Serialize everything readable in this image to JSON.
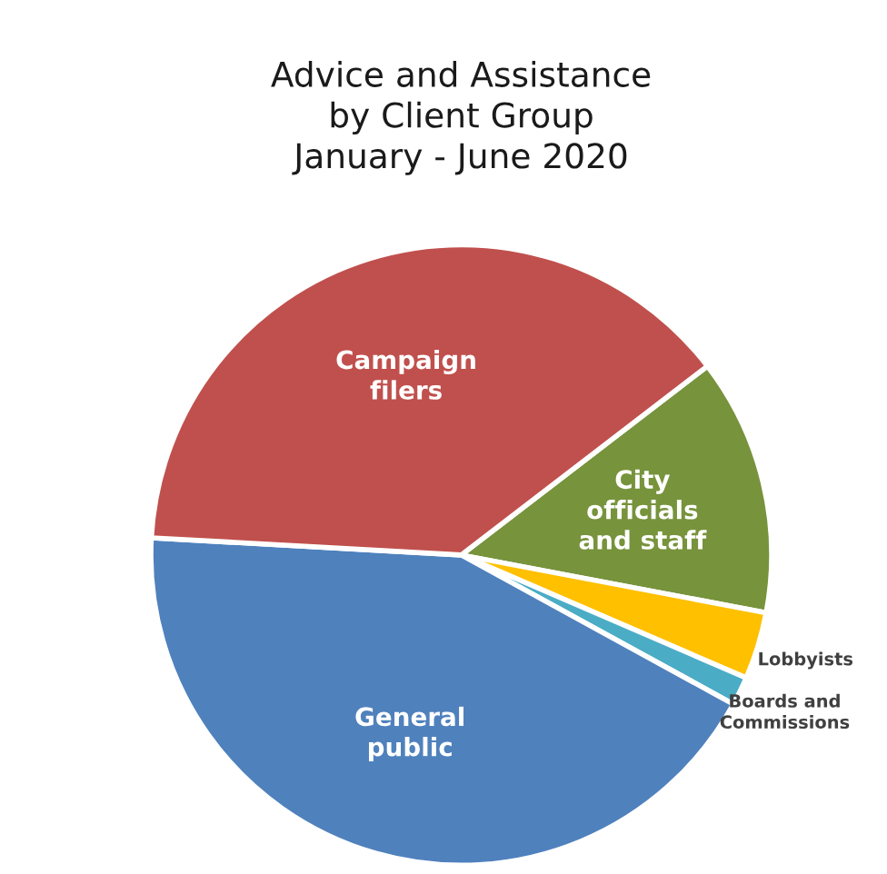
{
  "chart_data": {
    "type": "pie",
    "title": "Advice and Assistance\nby Client Group\nJanuary - June 2020",
    "categories": [
      "City\nofficials\nand staff",
      "Lobbyists",
      "Boards and\nCommissions",
      "General\npublic",
      "Campaign\nfilers"
    ],
    "values": [
      13.4,
      3.5,
      1.5,
      42.9,
      38.7
    ],
    "colors": [
      "#77933c",
      "#ffc000",
      "#4bacc6",
      "#4f81bd",
      "#c0504d"
    ]
  }
}
